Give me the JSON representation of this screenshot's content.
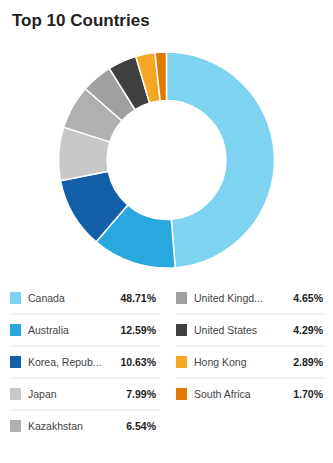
{
  "chart_data": {
    "type": "pie",
    "title": "Top 10 Countries",
    "categories": [
      "Canada",
      "Australia",
      "Korea, Repub...",
      "Japan",
      "Kazakhstan",
      "United Kingd...",
      "United States",
      "Hong Kong",
      "South Africa"
    ],
    "values": [
      48.71,
      12.59,
      10.63,
      7.99,
      6.54,
      4.65,
      4.29,
      2.89,
      1.7
    ],
    "value_labels": [
      "48.71%",
      "12.59%",
      "10.63%",
      "7.99%",
      "6.54%",
      "4.65%",
      "4.29%",
      "2.89%",
      "1.70%"
    ],
    "colors": [
      "#7DD3F0",
      "#29A8E0",
      "#1460A8",
      "#C8C8C8",
      "#B0B0B0",
      "#A0A0A0",
      "#404040",
      "#F5A623",
      "#E07B00"
    ],
    "legend": "bottom"
  }
}
